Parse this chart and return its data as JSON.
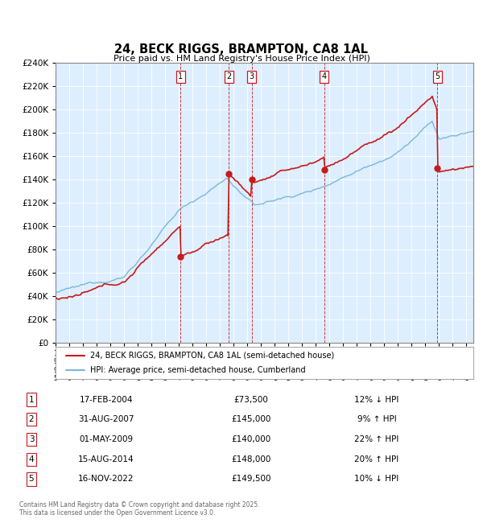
{
  "title": "24, BECK RIGGS, BRAMPTON, CA8 1AL",
  "subtitle": "Price paid vs. HM Land Registry's House Price Index (HPI)",
  "hpi_label": "HPI: Average price, semi-detached house, Cumberland",
  "property_label": "24, BECK RIGGS, BRAMPTON, CA8 1AL (semi-detached house)",
  "footer": "Contains HM Land Registry data © Crown copyright and database right 2025.\nThis data is licensed under the Open Government Licence v3.0.",
  "transactions": [
    {
      "num": 1,
      "date": "17-FEB-2004",
      "price": 73500,
      "pct": "12%",
      "dir": "↓",
      "year": 2004.12
    },
    {
      "num": 2,
      "date": "31-AUG-2007",
      "price": 145000,
      "pct": "9%",
      "dir": "↑",
      "year": 2007.66
    },
    {
      "num": 3,
      "date": "01-MAY-2009",
      "price": 140000,
      "pct": "22%",
      "dir": "↑",
      "year": 2009.33
    },
    {
      "num": 4,
      "date": "15-AUG-2014",
      "price": 148000,
      "pct": "20%",
      "dir": "↑",
      "year": 2014.62
    },
    {
      "num": 5,
      "date": "16-NOV-2022",
      "price": 149500,
      "pct": "10%",
      "dir": "↓",
      "year": 2022.88
    }
  ],
  "hpi_color": "#7ab8d9",
  "price_color": "#c8191c",
  "vline_color": "#c8191c",
  "plot_bg_color": "#ddeeff",
  "ylim": [
    0,
    240000
  ],
  "yticks": [
    0,
    20000,
    40000,
    60000,
    80000,
    100000,
    120000,
    140000,
    160000,
    180000,
    200000,
    220000,
    240000
  ],
  "xmin": 1995,
  "xmax": 2025.5
}
